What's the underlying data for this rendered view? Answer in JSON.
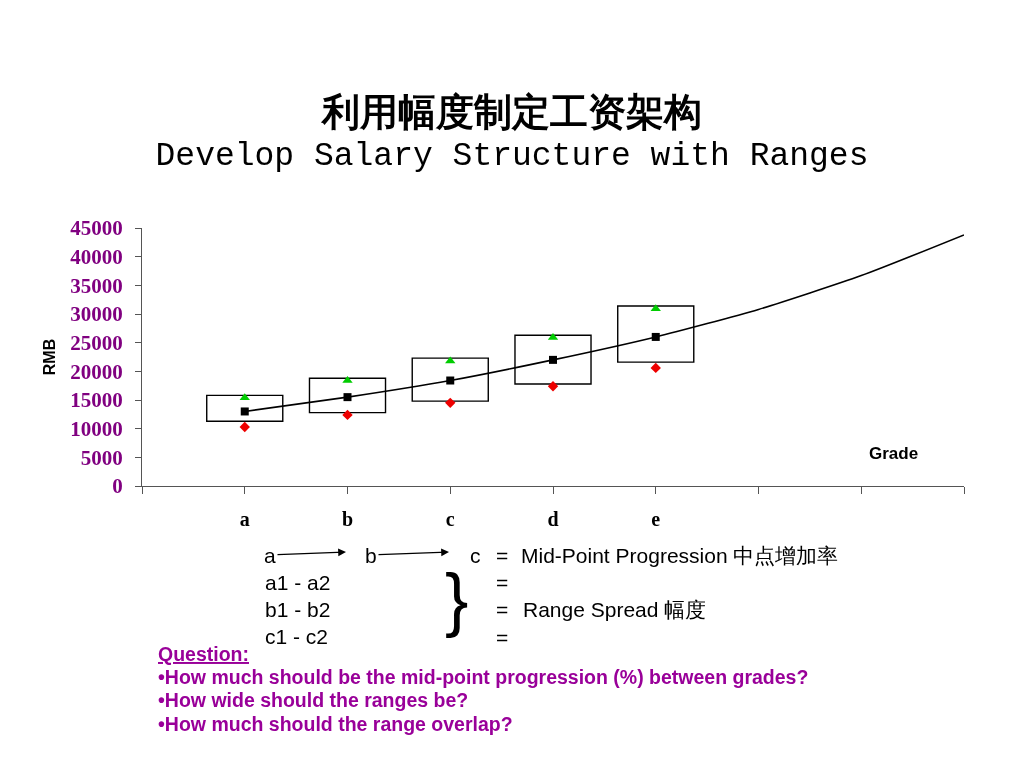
{
  "chart_data": {
    "type": "scatter",
    "title": "利用幅度制定工资架构",
    "subtitle": "Develop Salary Structure with Ranges",
    "xlabel": "Grade",
    "ylabel": "RMB",
    "categories": [
      null,
      "a",
      "b",
      "c",
      "d",
      "e",
      null,
      null,
      null
    ],
    "ylim": [
      0,
      45000
    ],
    "yticks": [
      0,
      5000,
      10000,
      15000,
      20000,
      25000,
      30000,
      35000,
      40000,
      45000
    ],
    "grid": false,
    "series": [
      {
        "type": "bar",
        "color": "#000000",
        "base": [
          null,
          11300,
          12800,
          14800,
          17800,
          21600,
          null,
          null,
          null
        ],
        "values": [
          null,
          4500,
          6000,
          7500,
          8500,
          9800,
          null,
          null,
          null
        ]
      },
      {
        "type": "line",
        "color": "#000000",
        "marker": "none",
        "line_style": "solid",
        "values": [
          null,
          13000,
          15500,
          18400,
          22000,
          26000,
          30800,
          36700,
          43800
        ]
      },
      {
        "color": "#00cc00",
        "marker": "triangle",
        "values": [
          null,
          15400,
          18400,
          21800,
          25900,
          30900,
          null,
          null,
          null
        ]
      },
      {
        "color": "#000000",
        "marker": "square",
        "values": [
          null,
          13000,
          15500,
          18400,
          22000,
          26000,
          null,
          null,
          null
        ]
      },
      {
        "color": "#ee0000",
        "marker": "diamond",
        "values": [
          null,
          10300,
          12400,
          14500,
          17400,
          20600,
          null,
          null,
          null
        ]
      }
    ],
    "annotations": [
      "a",
      "b",
      "c",
      "=",
      "Mid-Point Progression 中点增加率",
      "a1 - a2",
      "b1 - b2",
      "c1 - c2",
      "}",
      "=",
      "=",
      "Range Spread 幅度",
      "=",
      "Question:",
      "•How much should be the mid-point progression (%) between grades?",
      "•How wide should the ranges be?",
      "•How much should the range overlap?"
    ]
  }
}
